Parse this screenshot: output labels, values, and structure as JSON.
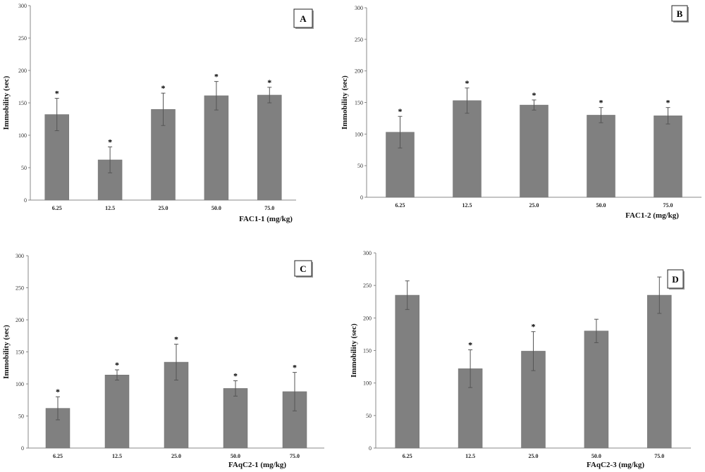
{
  "chart_data": [
    {
      "type": "bar",
      "panel": "A",
      "categories": [
        "6.25",
        "12.5",
        "25.0",
        "50.0",
        "75.0"
      ],
      "values": [
        132,
        62,
        140,
        161,
        162
      ],
      "errors": [
        25,
        20,
        25,
        22,
        12
      ],
      "significance": [
        "*",
        "*",
        "*",
        "*",
        "*"
      ],
      "xlabel": "FAC1-1 (mg/kg)",
      "ylabel": "Immobility (sec)",
      "ylim": [
        0,
        300
      ],
      "yticks": [
        0,
        50,
        100,
        150,
        200,
        250,
        300
      ],
      "color": "#808080",
      "grid": false
    },
    {
      "type": "bar",
      "panel": "B",
      "categories": [
        "6.25",
        "12.5",
        "25.0",
        "50.0",
        "75.0"
      ],
      "values": [
        103,
        153,
        146,
        130,
        129
      ],
      "errors": [
        25,
        20,
        8,
        12,
        13
      ],
      "significance": [
        "*",
        "*",
        "*",
        "*",
        "*"
      ],
      "xlabel": "FAC1-2 (mg/kg)",
      "ylabel": "Immobility (sec)",
      "ylim": [
        0,
        300
      ],
      "yticks": [
        0,
        50,
        100,
        150,
        200,
        250,
        300
      ],
      "color": "#808080",
      "grid": false
    },
    {
      "type": "bar",
      "panel": "C",
      "categories": [
        "6.25",
        "12.5",
        "25.0",
        "50.0",
        "75.0"
      ],
      "values": [
        62,
        114,
        134,
        93,
        88
      ],
      "errors": [
        18,
        8,
        28,
        12,
        30
      ],
      "significance": [
        "*",
        "*",
        "*",
        "*",
        "*"
      ],
      "xlabel": "FAqC2-1 (mg/kg)",
      "ylabel": "Immobility (sec)",
      "ylim": [
        0,
        300
      ],
      "yticks": [
        0,
        50,
        100,
        150,
        200,
        250,
        300
      ],
      "color": "#808080",
      "grid": false
    },
    {
      "type": "bar",
      "panel": "D",
      "categories": [
        "6.25",
        "12.5",
        "25.0",
        "50.0",
        "75.0"
      ],
      "values": [
        235,
        122,
        149,
        180,
        235
      ],
      "errors": [
        22,
        29,
        30,
        18,
        28
      ],
      "significance": [
        "",
        "*",
        "*",
        "",
        ""
      ],
      "xlabel": "FAqC2-3 (mg/kg)",
      "ylabel": "Immobility (sec)",
      "ylim": [
        0,
        300
      ],
      "yticks": [
        0,
        50,
        100,
        150,
        200,
        250,
        300
      ],
      "color": "#808080",
      "grid": false
    }
  ]
}
